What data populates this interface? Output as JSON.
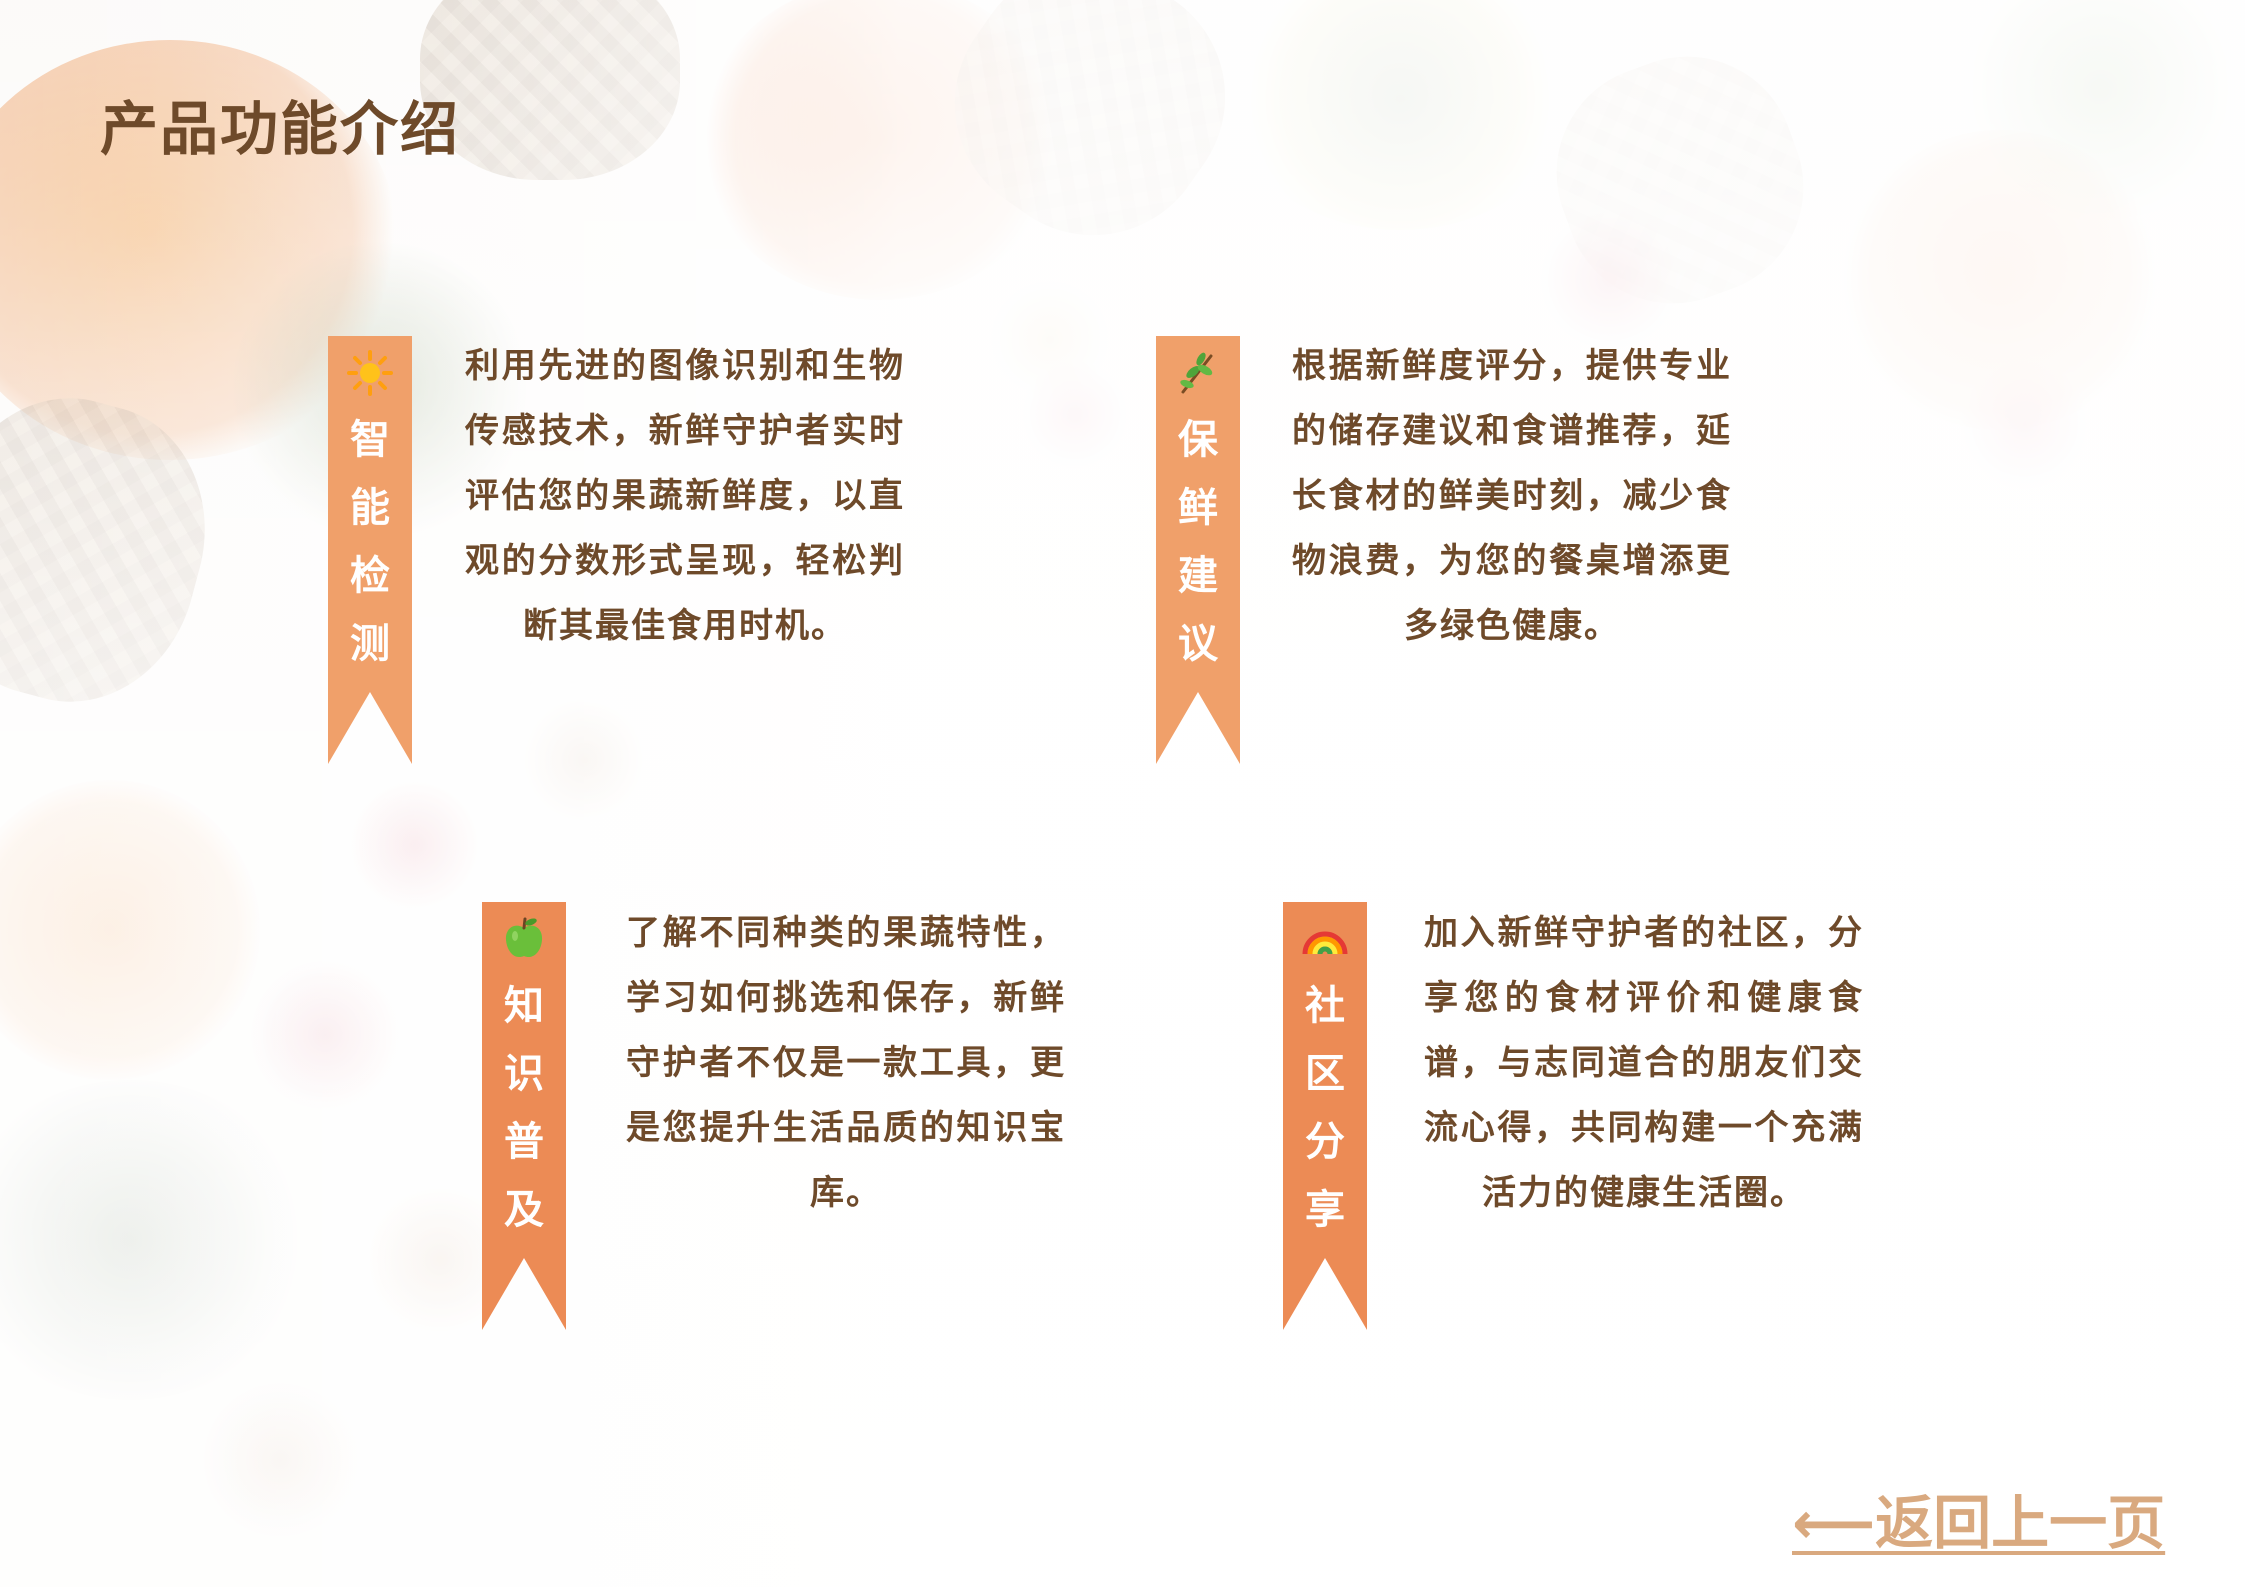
{
  "page": {
    "title": "产品功能介绍",
    "back_link": "⟵返回上一页"
  },
  "features": [
    {
      "label": "智能检测",
      "icon": "sun-icon",
      "description": "利用先进的图像识别和生物传感技术，新鲜守护者实时评估您的果蔬新鲜度，以直观的分数形式呈现，轻松判断其最佳食用时机。"
    },
    {
      "label": "保鲜建议",
      "icon": "herb-icon",
      "description": "根据新鲜度评分，提供专业的储存建议和食谱推荐，延长食材的鲜美时刻，减少食物浪费，为您的餐桌增添更多绿色健康。"
    },
    {
      "label": "知识普及",
      "icon": "apple-icon",
      "description": "了解不同种类的果蔬特性，学习如何挑选和保存，新鲜守护者不仅是一款工具，更是您提升生活品质的知识宝库。"
    },
    {
      "label": "社区分享",
      "icon": "rainbow-icon",
      "description": "加入新鲜守护者的社区，分享您的食材评价和健康食谱，与志同道合的朋友们交流心得，共同构建一个充满活力的健康生活圈。"
    }
  ],
  "colors": {
    "title": "#6e4a2a",
    "ribbon_light": "#f0a06a",
    "ribbon_dark": "#ec8b55",
    "back_link": "#d9a97f"
  }
}
